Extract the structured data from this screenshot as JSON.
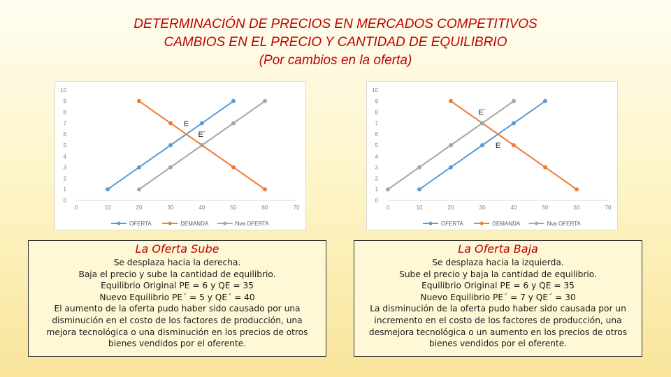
{
  "title": {
    "line1": "DETERMINACIÓN DE PRECIOS EN MERCADOS COMPETITIVOS",
    "line2": "CAMBIOS EN EL PRECIO Y CANTIDAD DE EQUILIBRIO",
    "line3": "(Por cambios en la oferta)"
  },
  "colors": {
    "title": "#c00000",
    "oferta": "#5b9bd5",
    "demanda": "#ed7d31",
    "nva_oferta": "#a5a5a5",
    "box_bg": "#fff8d6"
  },
  "chart_data": [
    {
      "type": "line",
      "ylim": [
        0,
        10
      ],
      "xlim": [
        0,
        70
      ],
      "x_ticks": [
        "0",
        "10",
        "20",
        "30",
        "40",
        "50",
        "60",
        "70"
      ],
      "y_ticks": [
        "0",
        "1",
        "2",
        "3",
        "4",
        "5",
        "6",
        "7",
        "8",
        "9",
        "10"
      ],
      "grid": false,
      "legend": "bottom",
      "series": [
        {
          "name": "OFERTA",
          "color": "#5b9bd5",
          "points": [
            [
              10,
              1
            ],
            [
              20,
              3
            ],
            [
              30,
              5
            ],
            [
              40,
              7
            ],
            [
              50,
              9
            ]
          ]
        },
        {
          "name": "DEMANDA",
          "color": "#ed7d31",
          "points": [
            [
              20,
              9
            ],
            [
              30,
              7
            ],
            [
              40,
              5
            ],
            [
              50,
              3
            ],
            [
              60,
              1
            ]
          ]
        },
        {
          "name": "Nva OFERTA",
          "color": "#a5a5a5",
          "points": [
            [
              20,
              1
            ],
            [
              30,
              3
            ],
            [
              40,
              5
            ],
            [
              50,
              7
            ],
            [
              60,
              9
            ]
          ]
        }
      ],
      "annotations": [
        {
          "text": "E",
          "x": 35,
          "y": 7
        },
        {
          "text": "E´",
          "x": 40,
          "y": 6
        }
      ]
    },
    {
      "type": "line",
      "ylim": [
        0,
        10
      ],
      "xlim": [
        0,
        70
      ],
      "x_ticks": [
        "0",
        "10",
        "20",
        "30",
        "40",
        "50",
        "60",
        "70"
      ],
      "y_ticks": [
        "0",
        "1",
        "2",
        "3",
        "4",
        "5",
        "6",
        "7",
        "8",
        "9",
        "10"
      ],
      "grid": false,
      "legend": "bottom",
      "series": [
        {
          "name": "OFERTA",
          "color": "#5b9bd5",
          "points": [
            [
              10,
              1
            ],
            [
              20,
              3
            ],
            [
              30,
              5
            ],
            [
              40,
              7
            ],
            [
              50,
              9
            ]
          ]
        },
        {
          "name": "DEMANDA",
          "color": "#ed7d31",
          "points": [
            [
              20,
              9
            ],
            [
              30,
              7
            ],
            [
              40,
              5
            ],
            [
              50,
              3
            ],
            [
              60,
              1
            ]
          ]
        },
        {
          "name": "Nva OFERTA",
          "color": "#a5a5a5",
          "points": [
            [
              0,
              1
            ],
            [
              10,
              3
            ],
            [
              20,
              5
            ],
            [
              30,
              7
            ],
            [
              40,
              9
            ]
          ]
        }
      ],
      "annotations": [
        {
          "text": "E´",
          "x": 30,
          "y": 8
        },
        {
          "text": "E",
          "x": 35,
          "y": 5
        }
      ]
    }
  ],
  "left_box": {
    "heading": "La Oferta Sube",
    "lines": [
      "Se desplaza hacia la derecha.",
      "Baja el precio y sube la cantidad de equilibrio.",
      "Equilibrio Original PE = 6 y QE = 35",
      "Nuevo Equilibrio PE´ = 5 y QE´ = 40",
      "El aumento de la oferta pudo haber sido causado por una",
      "disminución en el costo de los factores de producción, una",
      "mejora tecnológica o una disminución en los precios de otros",
      "bienes vendidos por el oferente."
    ]
  },
  "right_box": {
    "heading": "La Oferta Baja",
    "lines": [
      "Se desplaza hacia la izquierda.",
      "Sube el precio y baja la cantidad de equilibrio.",
      "Equilibrio Original PE = 6 y QE = 35",
      "Nuevo Equilibrio PE´ = 7 y QE´ = 30",
      "La disminución de la oferta pudo haber sido causada por un",
      "incremento en el costo de los factores de producción, una",
      "desmejora tecnológica o un aumento en los precios de otros",
      "bienes vendidos por el oferente."
    ]
  }
}
